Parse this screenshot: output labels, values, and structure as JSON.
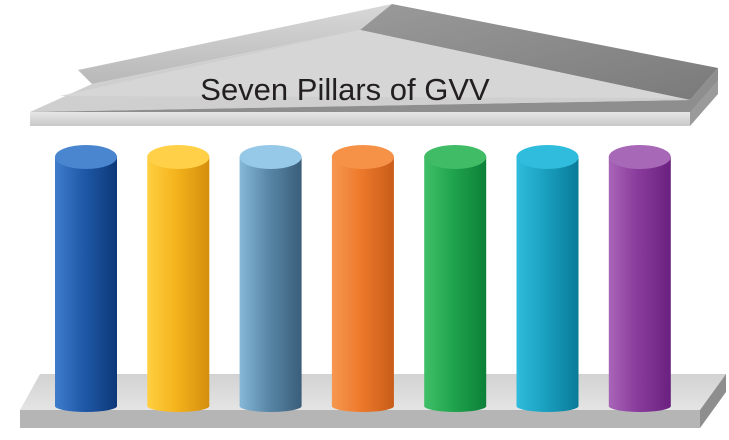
{
  "title": "Seven Pillars of GVV",
  "pillars": [
    {
      "color": "#1f5aa8",
      "light": "#3f7ccc",
      "dark": "#0c3878",
      "cap": "#4a86d0"
    },
    {
      "color": "#f5b41e",
      "light": "#ffcf40",
      "dark": "#d48e0c",
      "cap": "#ffd048"
    },
    {
      "color": "#5a88a8",
      "light": "#86b8d8",
      "dark": "#3a5e7a",
      "cap": "#96c8e8"
    },
    {
      "color": "#ee7a2c",
      "light": "#f69850",
      "dark": "#c85c18",
      "cap": "#f69248"
    },
    {
      "color": "#20a44e",
      "light": "#40c068",
      "dark": "#0c8038",
      "cap": "#40bc66"
    },
    {
      "color": "#1aa0c0",
      "light": "#30bcdc",
      "dark": "#0a7a98",
      "cap": "#30bcdc"
    },
    {
      "color": "#8a3c9c",
      "light": "#a866b8",
      "dark": "#6a2080",
      "cap": "#a868b8"
    }
  ]
}
